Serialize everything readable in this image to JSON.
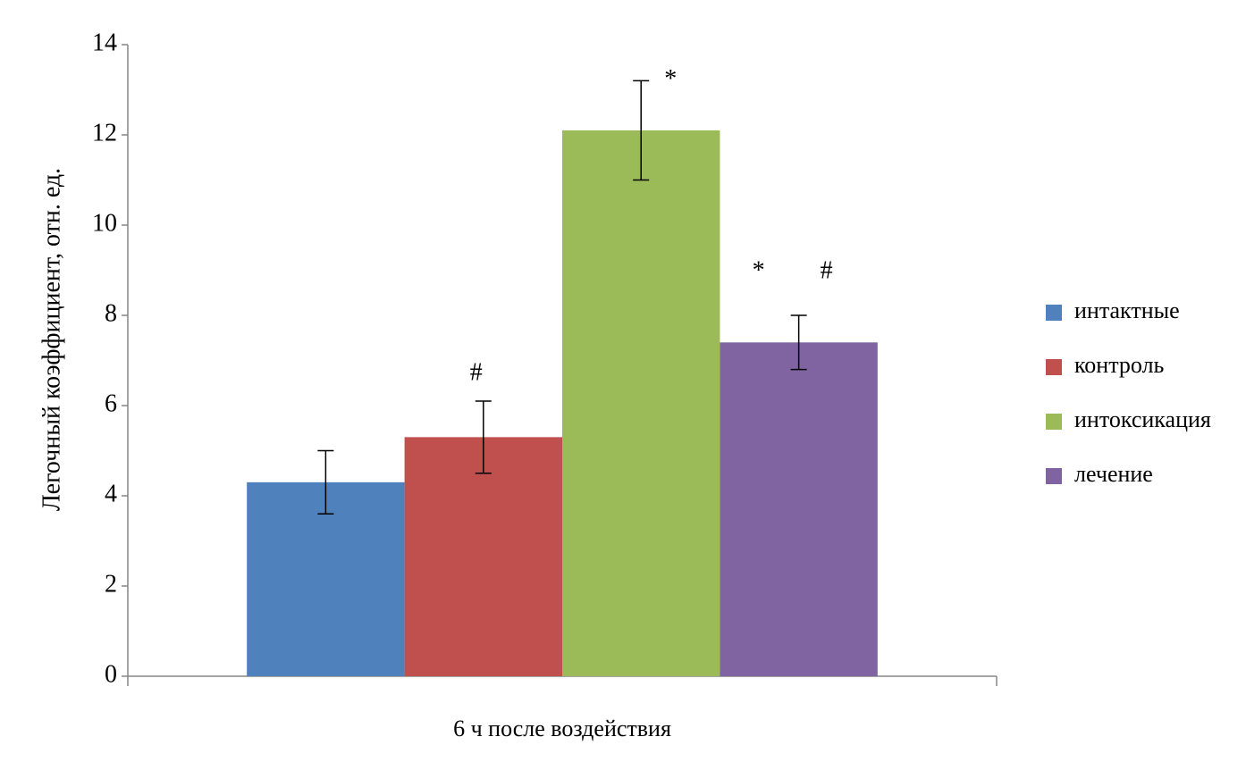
{
  "chart_data": {
    "type": "bar",
    "y_label": "Легочный коэффициент, отн. ед.",
    "categories": [
      "6 ч после воздействия"
    ],
    "series": [
      {
        "name": "интактные",
        "color": "#4f81bd",
        "values": [
          4.3
        ],
        "errors": [
          0.7
        ],
        "annotations": []
      },
      {
        "name": "контроль",
        "color": "#c0504d",
        "values": [
          5.3
        ],
        "errors": [
          0.8
        ],
        "annotations": [
          "#"
        ]
      },
      {
        "name": "интоксикация",
        "color": "#9bbb59",
        "values": [
          12.1
        ],
        "errors": [
          1.1
        ],
        "annotations": [
          "*"
        ]
      },
      {
        "name": "лечение",
        "color": "#8064a2",
        "values": [
          7.4
        ],
        "errors": [
          0.6
        ],
        "annotations": [
          "*",
          "#"
        ]
      }
    ],
    "ylim": [
      0,
      14
    ],
    "yticks": [
      0,
      2,
      4,
      6,
      8,
      10,
      12,
      14
    ],
    "legend": "right"
  }
}
